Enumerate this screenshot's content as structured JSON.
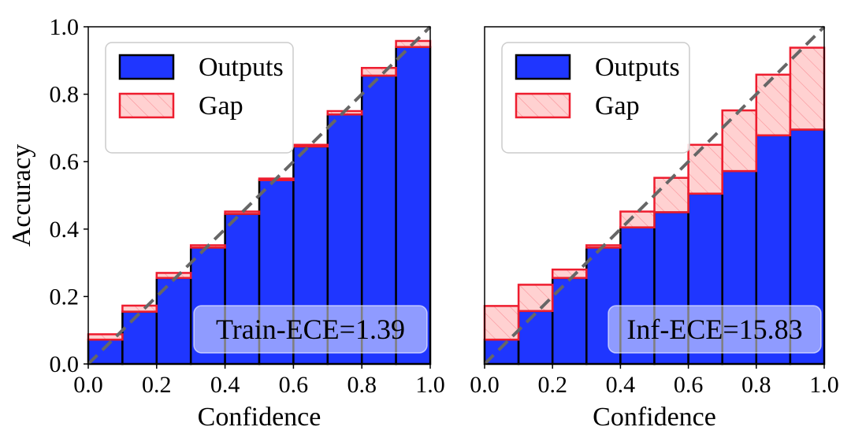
{
  "colors": {
    "outputs_fill": "#1f36ff",
    "gap_fill": "#ff9a9a",
    "gap_edge": "#ee1c2e",
    "diagonal": "#666666",
    "legend_border": "#cccccc"
  },
  "chart_data": [
    {
      "type": "bar",
      "name": "train",
      "title": "",
      "xlabel": "Confidence",
      "ylabel": "Accuracy",
      "xlim": [
        0.0,
        1.0
      ],
      "ylim": [
        0.0,
        1.0
      ],
      "xticks": [
        "0.0",
        "0.2",
        "0.4",
        "0.6",
        "0.8",
        "1.0"
      ],
      "yticks": [
        "0.0",
        "0.2",
        "0.4",
        "0.6",
        "0.8",
        "1.0"
      ],
      "bin_edges": [
        0.0,
        0.1,
        0.2,
        0.3,
        0.4,
        0.5,
        0.6,
        0.7,
        0.8,
        0.9,
        1.0
      ],
      "series": [
        {
          "name": "Outputs",
          "values": [
            0.072,
            0.155,
            0.255,
            0.345,
            0.445,
            0.545,
            0.645,
            0.74,
            0.855,
            0.94
          ]
        },
        {
          "name": "Gap",
          "values": [
            0.088,
            0.173,
            0.27,
            0.352,
            0.452,
            0.55,
            0.65,
            0.75,
            0.878,
            0.958
          ]
        }
      ],
      "legend": [
        "Outputs",
        "Gap"
      ],
      "legend_position": "upper-left",
      "annotation": "Train-ECE=1.39",
      "reference_line": "y=x"
    },
    {
      "type": "bar",
      "name": "inference",
      "title": "",
      "xlabel": "Confidence",
      "ylabel": "",
      "xlim": [
        0.0,
        1.0
      ],
      "ylim": [
        0.0,
        1.0
      ],
      "xticks": [
        "0.0",
        "0.2",
        "0.4",
        "0.6",
        "0.8",
        "1.0"
      ],
      "yticks": [],
      "bin_edges": [
        0.0,
        0.1,
        0.2,
        0.3,
        0.4,
        0.5,
        0.6,
        0.7,
        0.8,
        0.9,
        1.0
      ],
      "series": [
        {
          "name": "Outputs",
          "values": [
            0.072,
            0.157,
            0.255,
            0.345,
            0.405,
            0.45,
            0.505,
            0.572,
            0.678,
            0.695
          ]
        },
        {
          "name": "Gap",
          "values": [
            0.172,
            0.235,
            0.28,
            0.352,
            0.452,
            0.552,
            0.65,
            0.752,
            0.858,
            0.938
          ]
        }
      ],
      "legend": [
        "Outputs",
        "Gap"
      ],
      "legend_position": "upper-left",
      "annotation": "Inf-ECE=15.83",
      "reference_line": "y=x"
    }
  ]
}
